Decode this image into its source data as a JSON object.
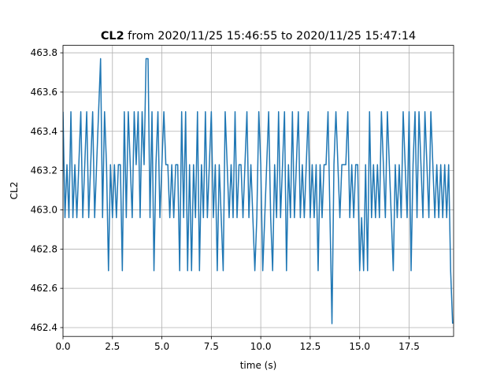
{
  "chart_data": {
    "type": "line",
    "title_name": "CL2",
    "title": "from 2020/11/25 15:46:55 to 2020/11/25 15:47:14",
    "xlabel": "time (s)",
    "ylabel": "CL2",
    "x": [
      0,
      0.1,
      0.2,
      0.3,
      0.4,
      0.5,
      0.6,
      0.7,
      0.8,
      0.9,
      1,
      1.1,
      1.2,
      1.3,
      1.4,
      1.5,
      1.6,
      1.7,
      1.8,
      1.9,
      2,
      2.1,
      2.2,
      2.3,
      2.4,
      2.5,
      2.6,
      2.7,
      2.8,
      2.9,
      3,
      3.1,
      3.2,
      3.3,
      3.4,
      3.5,
      3.6,
      3.7,
      3.8,
      3.9,
      4,
      4.1,
      4.2,
      4.3,
      4.4,
      4.5,
      4.6,
      4.7,
      4.8,
      4.9,
      5,
      5.1,
      5.2,
      5.3,
      5.4,
      5.5,
      5.6,
      5.7,
      5.8,
      5.9,
      6,
      6.1,
      6.2,
      6.3,
      6.4,
      6.5,
      6.6,
      6.7,
      6.8,
      6.9,
      7,
      7.1,
      7.2,
      7.3,
      7.4,
      7.5,
      7.6,
      7.7,
      7.8,
      7.9,
      8,
      8.1,
      8.2,
      8.3,
      8.4,
      8.5,
      8.6,
      8.7,
      8.8,
      8.9,
      9,
      9.1,
      9.2,
      9.3,
      9.4,
      9.5,
      9.6,
      9.7,
      9.8,
      9.9,
      10,
      10.1,
      10.2,
      10.3,
      10.4,
      10.5,
      10.6,
      10.7,
      10.8,
      10.9,
      11,
      11.1,
      11.2,
      11.3,
      11.4,
      11.5,
      11.6,
      11.7,
      11.8,
      11.9,
      12,
      12.1,
      12.2,
      12.3,
      12.4,
      12.5,
      12.6,
      12.7,
      12.8,
      12.9,
      13,
      13.1,
      13.2,
      13.3,
      13.4,
      13.5,
      13.6,
      13.7,
      13.8,
      13.9,
      14,
      14.1,
      14.2,
      14.3,
      14.4,
      14.5,
      14.6,
      14.7,
      14.8,
      14.9,
      15,
      15.1,
      15.2,
      15.3,
      15.4,
      15.5,
      15.6,
      15.7,
      15.8,
      15.9,
      16,
      16.1,
      16.2,
      16.3,
      16.4,
      16.5,
      16.6,
      16.7,
      16.8,
      16.9,
      17,
      17.1,
      17.2,
      17.3,
      17.4,
      17.5,
      17.6,
      17.7,
      17.8,
      17.9,
      18,
      18.1,
      18.2,
      18.3,
      18.4,
      18.5,
      18.6,
      18.7,
      18.8,
      18.9,
      19,
      19.1,
      19.2,
      19.3,
      19.4,
      19.5,
      19.6,
      19.7
    ],
    "series": [
      {
        "name": "CL2",
        "color": "#1f77b4",
        "values": [
          463.5,
          462.96,
          463.23,
          462.96,
          463.5,
          462.96,
          463.23,
          462.96,
          463.23,
          463.5,
          462.96,
          463.23,
          463.5,
          462.96,
          463.23,
          463.5,
          462.96,
          463.23,
          463.5,
          463.77,
          462.96,
          463.5,
          463.23,
          462.69,
          463.23,
          462.96,
          463.23,
          462.96,
          463.23,
          463.23,
          462.69,
          463.5,
          462.96,
          463.5,
          463.23,
          462.96,
          463.5,
          463.23,
          463.5,
          462.96,
          463.5,
          463.23,
          463.77,
          463.77,
          462.96,
          463.5,
          462.69,
          463.23,
          463.5,
          462.96,
          463.23,
          463.5,
          463.23,
          463.23,
          462.96,
          463.23,
          462.96,
          463.23,
          463.23,
          462.69,
          463.5,
          462.96,
          463.5,
          462.69,
          463.23,
          462.69,
          463.23,
          462.96,
          463.5,
          462.69,
          463.23,
          462.96,
          463.5,
          462.96,
          463.23,
          463.5,
          462.96,
          463.23,
          462.69,
          463.23,
          462.96,
          462.69,
          463.5,
          463.23,
          462.96,
          463.23,
          462.96,
          463.5,
          462.96,
          463.23,
          463.23,
          462.96,
          463.23,
          463.5,
          462.96,
          463.23,
          462.96,
          462.69,
          462.96,
          463.5,
          463.23,
          462.69,
          462.96,
          463.23,
          463.5,
          462.96,
          462.69,
          463.23,
          462.96,
          463.5,
          462.96,
          463.23,
          463.5,
          462.69,
          463.23,
          462.96,
          463.5,
          462.96,
          463.23,
          463.5,
          462.96,
          463.23,
          462.96,
          463.23,
          463.5,
          462.96,
          463.23,
          462.96,
          463.23,
          462.69,
          463.23,
          462.96,
          463.23,
          463.23,
          463.5,
          462.96,
          462.42,
          463.23,
          463.5,
          463.23,
          462.96,
          463.23,
          463.23,
          463.23,
          463.5,
          462.96,
          463.23,
          462.96,
          463.23,
          463.23,
          462.69,
          462.96,
          462.69,
          463.23,
          462.69,
          463.5,
          462.96,
          463.23,
          462.96,
          463.23,
          462.96,
          463.5,
          463.23,
          462.96,
          463.5,
          463.23,
          462.96,
          462.69,
          463.23,
          462.96,
          463.23,
          462.96,
          463.5,
          463.23,
          462.96,
          463.5,
          462.69,
          463.23,
          463.5,
          462.96,
          463.5,
          463.23,
          462.96,
          463.5,
          463.23,
          462.96,
          463.5,
          463.23,
          462.96,
          463.23,
          462.96,
          463.23,
          462.96,
          463.23,
          462.96,
          463.23,
          462.69,
          462.42
        ]
      }
    ],
    "xlim": [
      0,
      19.75
    ],
    "ylim": [
      462.355,
      463.838
    ],
    "xticks": [
      {
        "value": 0,
        "label": "0.0"
      },
      2.5,
      {
        "value": 5,
        "label": "5.0"
      },
      7.5,
      {
        "value": 10,
        "label": "10.0"
      },
      12.5,
      {
        "value": 15,
        "label": "15.0"
      },
      17.5
    ],
    "yticks": [
      462.4,
      462.6,
      462.8,
      {
        "value": 463,
        "label": "463.0"
      },
      463.2,
      463.4,
      463.6,
      463.8
    ],
    "grid": true
  }
}
